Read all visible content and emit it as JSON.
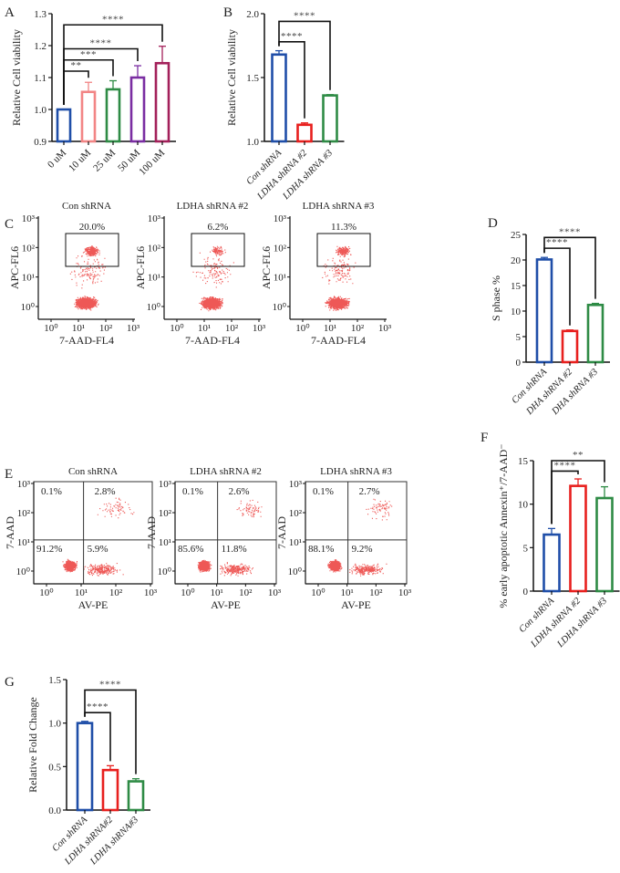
{
  "chart_data": [
    {
      "id": "A",
      "panel_label": "A",
      "type": "bar",
      "title": "",
      "xlabel": "",
      "ylabel": "Relative Cell viability",
      "categories": [
        "0 uM",
        "10 uM",
        "25 uM",
        "50 uM",
        "100 uM"
      ],
      "values": [
        1.0,
        1.055,
        1.063,
        1.1,
        1.145
      ],
      "errors": [
        0.0,
        0.03,
        0.027,
        0.037,
        0.053
      ],
      "colors": [
        "#1f4ea8",
        "#f28585",
        "#2e8b45",
        "#7a2da2",
        "#a3205a"
      ],
      "ylim": [
        0.9,
        1.3
      ],
      "yticks": [
        "0.9",
        "1.0",
        "1.1",
        "1.2",
        "1.3"
      ],
      "ytick_values": [
        0.9,
        1.0,
        1.1,
        1.2,
        1.3
      ],
      "italic_categories": false,
      "significance": [
        {
          "from": 0,
          "to": 1,
          "level": 1.12,
          "label": "**"
        },
        {
          "from": 0,
          "to": 2,
          "level": 1.155,
          "label": "***"
        },
        {
          "from": 0,
          "to": 3,
          "level": 1.19,
          "label": "****"
        },
        {
          "from": 0,
          "to": 4,
          "level": 1.265,
          "label": "****"
        }
      ]
    },
    {
      "id": "B",
      "panel_label": "B",
      "type": "bar",
      "title": "",
      "xlabel": "",
      "ylabel": "Relative Cell viability",
      "categories": [
        "Con shRNA",
        "LDHA shRNA #2",
        "LDHA shRNA #3"
      ],
      "values": [
        1.68,
        1.13,
        1.36
      ],
      "errors": [
        0.03,
        0.015,
        0.006
      ],
      "colors": [
        "#1f4ea8",
        "#e8201e",
        "#2e8b45"
      ],
      "ylim": [
        1.0,
        2.0
      ],
      "yticks": [
        "1.0",
        "1.5",
        "2.0"
      ],
      "ytick_values": [
        1.0,
        1.5,
        2.0
      ],
      "italic_categories": true,
      "significance": [
        {
          "from": 0,
          "to": 1,
          "level": 1.78,
          "label": "****"
        },
        {
          "from": 0,
          "to": 2,
          "level": 1.94,
          "label": "****"
        }
      ]
    },
    {
      "id": "D",
      "panel_label": "D",
      "type": "bar",
      "title": "",
      "xlabel": "",
      "ylabel": "S phase %",
      "categories": [
        "Con shRNA",
        "DHA shRNA #2",
        "DHA shRNA #3"
      ],
      "values": [
        20.1,
        6.1,
        11.2
      ],
      "errors": [
        0.4,
        0.2,
        0.3
      ],
      "colors": [
        "#1f4ea8",
        "#e8201e",
        "#2e8b45"
      ],
      "ylim": [
        0,
        25
      ],
      "yticks": [
        "0",
        "5",
        "10",
        "15",
        "20",
        "25"
      ],
      "ytick_values": [
        0,
        5,
        10,
        15,
        20,
        25
      ],
      "italic_categories": true,
      "significance": [
        {
          "from": 0,
          "to": 1,
          "level": 22.3,
          "label": "****"
        },
        {
          "from": 0,
          "to": 2,
          "level": 24.4,
          "label": "****"
        }
      ]
    },
    {
      "id": "F",
      "panel_label": "F",
      "type": "bar",
      "title": "",
      "xlabel": "",
      "ylabel": "% early apoptotic Annexin⁺/7-AAD⁻",
      "categories": [
        "Con shRNA",
        "LDHA shRNA #2",
        "LDHA shRNA #3"
      ],
      "values": [
        6.5,
        12.1,
        10.7
      ],
      "errors": [
        0.7,
        0.8,
        1.3
      ],
      "colors": [
        "#1f4ea8",
        "#e8201e",
        "#2e8b45"
      ],
      "ylim": [
        0,
        15
      ],
      "yticks": [
        "0",
        "5",
        "10",
        "15"
      ],
      "ytick_values": [
        0,
        5,
        10,
        15
      ],
      "italic_categories": true,
      "significance": [
        {
          "from": 0,
          "to": 1,
          "level": 13.8,
          "label": "****"
        },
        {
          "from": 0,
          "to": 2,
          "level": 15.0,
          "label": "**"
        }
      ]
    },
    {
      "id": "G",
      "panel_label": "G",
      "type": "bar",
      "title": "",
      "xlabel": "",
      "ylabel": "Relative Fold Change",
      "categories": [
        "Con shRNA",
        "LDHA shRNA#2",
        "LDHA shRNA#3"
      ],
      "values": [
        1.0,
        0.46,
        0.33
      ],
      "errors": [
        0.02,
        0.05,
        0.03
      ],
      "colors": [
        "#1f4ea8",
        "#e8201e",
        "#2e8b45"
      ],
      "ylim": [
        0,
        1.5
      ],
      "yticks": [
        "0.0",
        "0.5",
        "1.0",
        "1.5"
      ],
      "ytick_values": [
        0,
        0.5,
        1.0,
        1.5
      ],
      "italic_categories": true,
      "significance": [
        {
          "from": 0,
          "to": 1,
          "level": 1.12,
          "label": "****"
        },
        {
          "from": 0,
          "to": 2,
          "level": 1.38,
          "label": "****"
        }
      ]
    },
    {
      "id": "C",
      "panel_label": "C",
      "type": "scatter",
      "xlabel": "7-AAD-FL4",
      "ylabel": "APC-FL6",
      "ticks": [
        "10⁰",
        "10¹",
        "10²",
        "10³"
      ],
      "plots": [
        {
          "title": "Con shRNA",
          "gate_percent": "20.0%",
          "gate_fraction": 0.2
        },
        {
          "title": "LDHA shRNA #2",
          "gate_percent": "6.2%",
          "gate_fraction": 0.062
        },
        {
          "title": "LDHA shRNA #3",
          "gate_percent": "11.3%",
          "gate_fraction": 0.113
        }
      ]
    },
    {
      "id": "E",
      "panel_label": "E",
      "type": "scatter",
      "xlabel": "AV-PE",
      "ylabel": "7-AAD",
      "ticks": [
        "10⁰",
        "10¹",
        "10²",
        "10³"
      ],
      "plots": [
        {
          "title": "Con shRNA",
          "quadrants": {
            "upper_left": "0.1%",
            "upper_right": "2.8%",
            "lower_left": "91.2%",
            "lower_right": "5.9%"
          }
        },
        {
          "title": "LDHA shRNA #2",
          "quadrants": {
            "upper_left": "0.1%",
            "upper_right": "2.6%",
            "lower_left": "85.6%",
            "lower_right": "11.8%"
          }
        },
        {
          "title": "LDHA shRNA #3",
          "quadrants": {
            "upper_left": "0.1%",
            "upper_right": "2.7%",
            "lower_left": "88.1%",
            "lower_right": "9.2%"
          }
        }
      ]
    }
  ]
}
